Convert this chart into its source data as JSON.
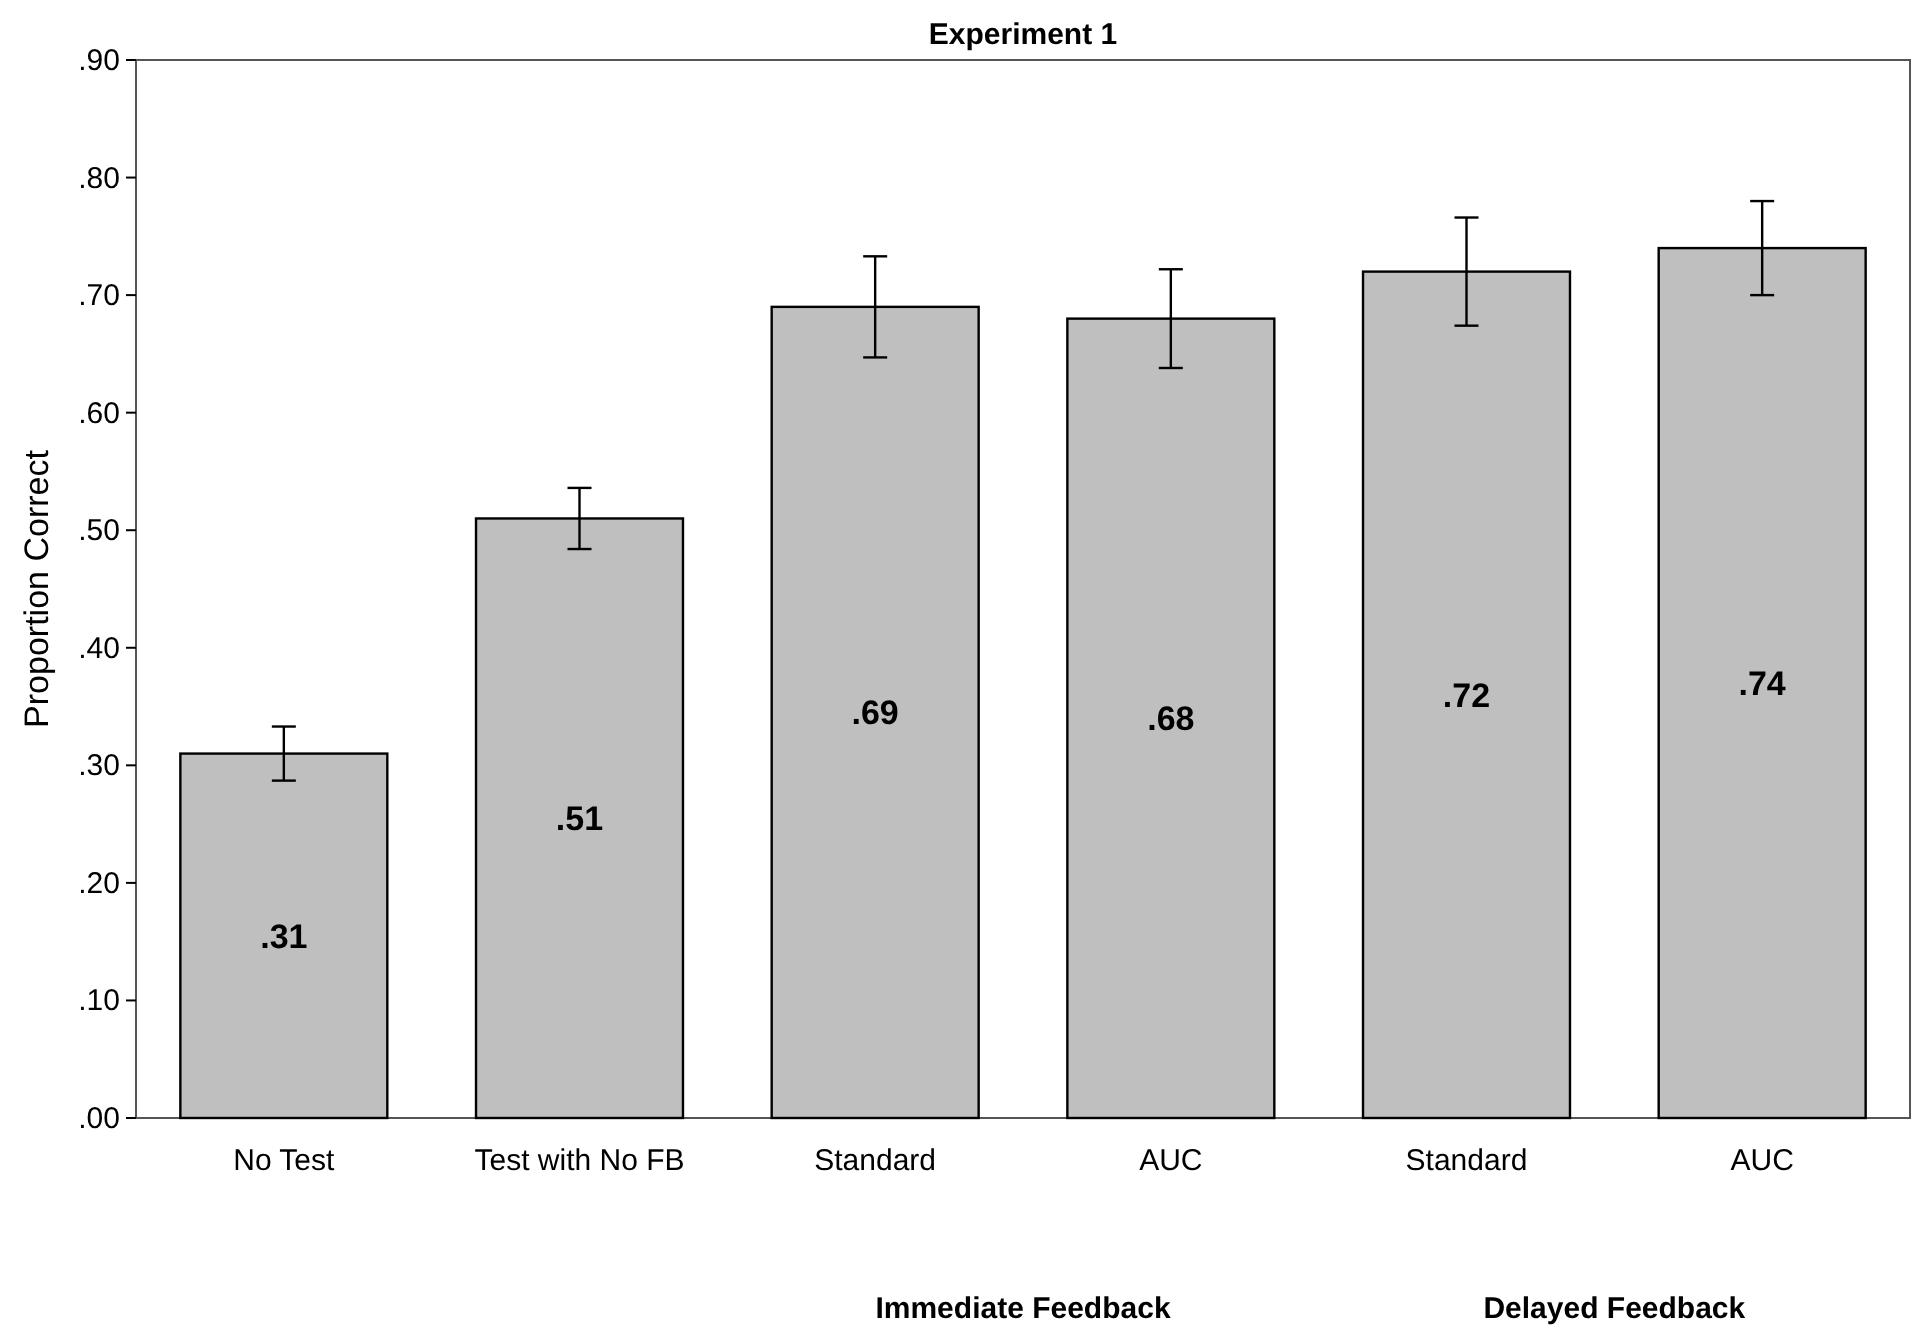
{
  "chart_data": {
    "type": "bar",
    "title": "Experiment 1",
    "ylabel": "Proportion Correct",
    "categories": [
      "No Test",
      "Test with No FB",
      "Standard",
      "AUC",
      "Standard",
      "AUC"
    ],
    "values": [
      0.31,
      0.51,
      0.69,
      0.68,
      0.72,
      0.74
    ],
    "errors": [
      0.023,
      0.026,
      0.043,
      0.042,
      0.046,
      0.04
    ],
    "color": "#bfbfbf",
    "value_labels": [
      ".31",
      ".51",
      ".69",
      ".68",
      ".72",
      ".74"
    ],
    "grid": false,
    "ylim": [
      0,
      0.9
    ],
    "yticks": [
      {
        "value": 0,
        "label": ".00"
      },
      {
        "value": 0.1,
        "label": ".10"
      },
      {
        "value": 0.2,
        "label": ".20"
      },
      {
        "value": 0.3,
        "label": ".30"
      },
      {
        "value": 0.4,
        "label": ".40"
      },
      {
        "value": 0.5,
        "label": ".50"
      },
      {
        "value": 0.6,
        "label": ".60"
      },
      {
        "value": 0.7,
        "label": ".70"
      },
      {
        "value": 0.8,
        "label": ".80"
      },
      {
        "value": 0.9,
        "label": ".90"
      }
    ],
    "annotations": [
      "Immediate Feedback",
      "Delayed Feedback"
    ]
  }
}
